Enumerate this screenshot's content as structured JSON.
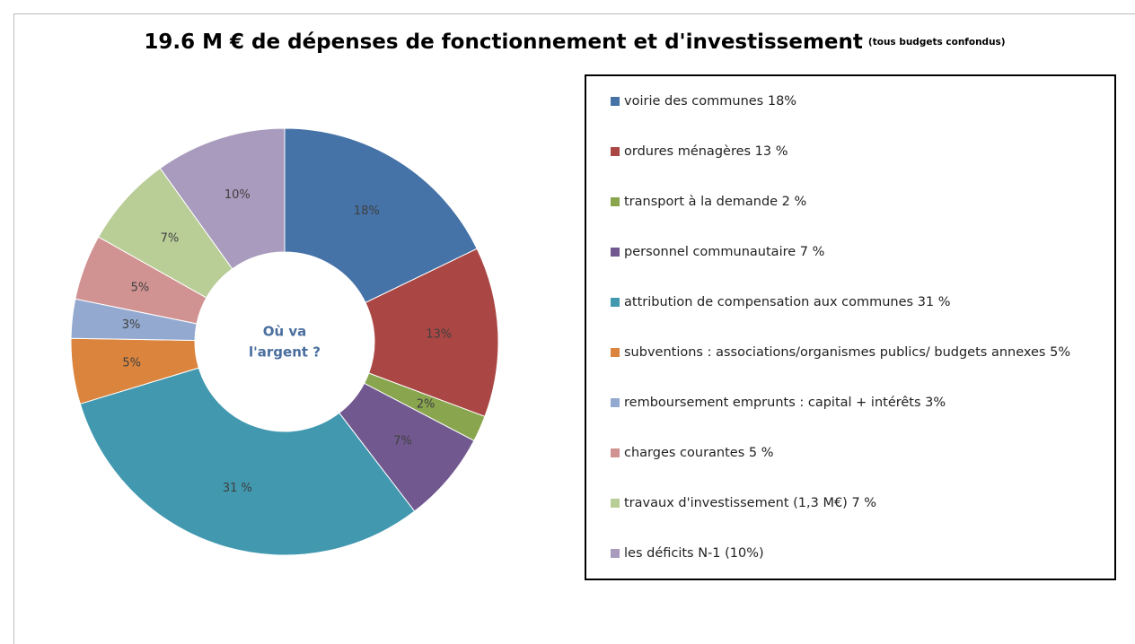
{
  "chart_data": {
    "type": "donut",
    "title": "19.6 M € de dépenses de fonctionnement et d'investissement",
    "subtitle": "(tous budgets confondus)",
    "annotations": [
      "Où va",
      "l'argent ?"
    ],
    "categories": [
      "voirie des communes 18%",
      "ordures ménagères 13 %",
      "transport à la demande 2 %",
      "personnel communautaire 7 %",
      "attribution de compensation aux communes 31 %",
      "subventions : associations/organismes publics/ budgets annexes 5%",
      "remboursement emprunts : capital + intérêts 3%",
      "charges courantes 5 %",
      "travaux d'investissement (1,3 M€) 7 %",
      "les déficits N-1 (10%)"
    ],
    "values": [
      18,
      13,
      2,
      7,
      31,
      5,
      3,
      5,
      7,
      10
    ],
    "value_labels": [
      "18%",
      "13%",
      "2%",
      "7%",
      "31 %",
      "5%",
      "3%",
      "5%",
      "7%",
      "10%"
    ],
    "colors": [
      "#4572a7",
      "#aa4643",
      "#89a54e",
      "#71588f",
      "#4198af",
      "#db843d",
      "#93a9cf",
      "#d19392",
      "#b9cd96",
      "#a99bbd"
    ]
  }
}
